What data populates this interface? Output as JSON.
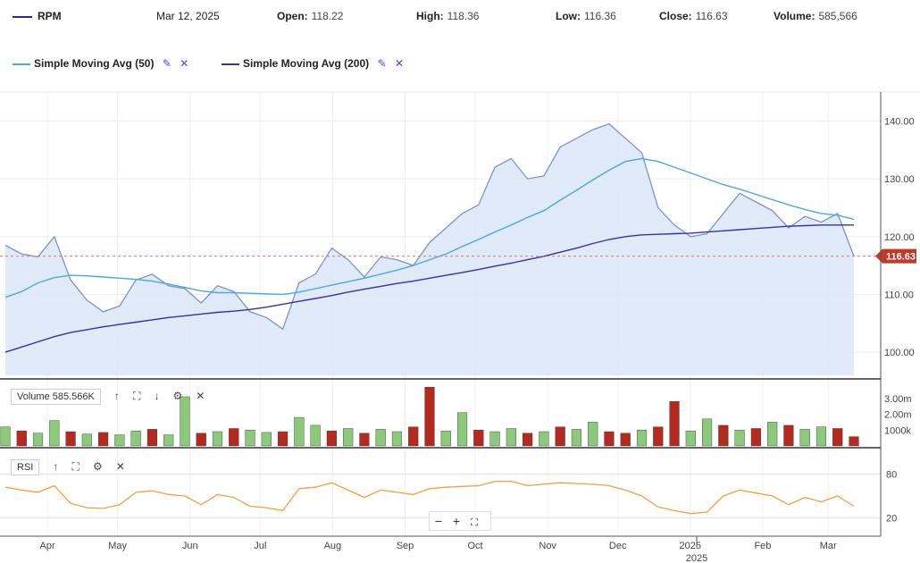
{
  "header": {
    "symbol": "RPM",
    "date": "Mar 12, 2025",
    "open_label": "Open:",
    "open": "118.22",
    "high_label": "High:",
    "high": "118.36",
    "low_label": "Low:",
    "low": "116.36",
    "close_label": "Close:",
    "close": "116.63",
    "volume_label": "Volume:",
    "volume": "585,566"
  },
  "legend": [
    {
      "label": "Simple Moving Avg (50)",
      "color": "#4aa8e0"
    },
    {
      "label": "Simple Moving Avg (200)",
      "color": "#3b2fa8"
    }
  ],
  "volume_pane": {
    "label": "Volume 585.566K"
  },
  "rsi_pane": {
    "label": "RSI"
  },
  "colors": {
    "price_line": "#7c93c9",
    "price_fill": "#dce6f7",
    "up_bar": "#8cc97a",
    "down_bar": "#b52a1f",
    "rsi": "#f2a040",
    "last_badge": "#c0392b"
  },
  "chart_data": {
    "type": "area",
    "x": [
      "2024-03-14",
      "2024-03-21",
      "2024-03-28",
      "2024-04-04",
      "2024-04-11",
      "2024-04-18",
      "2024-04-25",
      "2024-05-02",
      "2024-05-09",
      "2024-05-16",
      "2024-05-23",
      "2024-05-30",
      "2024-06-06",
      "2024-06-13",
      "2024-06-20",
      "2024-06-27",
      "2024-07-04",
      "2024-07-11",
      "2024-07-18",
      "2024-07-25",
      "2024-08-01",
      "2024-08-08",
      "2024-08-15",
      "2024-08-22",
      "2024-08-29",
      "2024-09-05",
      "2024-09-12",
      "2024-09-19",
      "2024-09-26",
      "2024-10-03",
      "2024-10-10",
      "2024-10-17",
      "2024-10-24",
      "2024-10-31",
      "2024-11-07",
      "2024-11-14",
      "2024-11-21",
      "2024-11-28",
      "2024-12-05",
      "2024-12-12",
      "2024-12-19",
      "2024-12-26",
      "2025-01-02",
      "2025-01-09",
      "2025-01-16",
      "2025-01-23",
      "2025-01-30",
      "2025-02-06",
      "2025-02-13",
      "2025-02-20",
      "2025-02-27",
      "2025-03-06",
      "2025-03-12"
    ],
    "series": [
      {
        "name": "RPM",
        "values": [
          118.5,
          117.0,
          116.5,
          120.0,
          112.5,
          109.0,
          107.0,
          108.0,
          112.5,
          113.5,
          111.5,
          111.0,
          108.5,
          111.5,
          110.5,
          107.0,
          106.0,
          104.0,
          112.0,
          113.5,
          118.0,
          116.0,
          113.0,
          116.5,
          116.0,
          115.0,
          119.0,
          121.5,
          124.0,
          125.5,
          132.0,
          133.5,
          130.0,
          130.5,
          135.5,
          137.0,
          138.5,
          139.5,
          137.0,
          134.5,
          125.0,
          122.0,
          120.0,
          120.5,
          124.0,
          127.5,
          126.0,
          124.5,
          121.5,
          123.5,
          122.5,
          124.0,
          116.63
        ]
      },
      {
        "name": "Simple Moving Avg (50)",
        "values": [
          109.5,
          110.5,
          112.0,
          112.9,
          113.3,
          113.2,
          113.0,
          112.8,
          112.6,
          112.3,
          111.8,
          111.2,
          110.6,
          110.3,
          110.3,
          110.2,
          110.1,
          110.0,
          110.4,
          111.0,
          111.6,
          112.2,
          112.8,
          113.5,
          114.2,
          115.0,
          116.0,
          117.0,
          118.3,
          119.5,
          120.8,
          122.0,
          123.3,
          124.5,
          126.3,
          128.0,
          129.8,
          131.5,
          133.0,
          133.5,
          133.0,
          132.0,
          131.0,
          130.0,
          129.0,
          128.2,
          127.3,
          126.4,
          125.5,
          124.7,
          124.0,
          123.7,
          123.0
        ]
      },
      {
        "name": "Simple Moving Avg (200)",
        "values": [
          100.0,
          100.9,
          101.8,
          102.7,
          103.4,
          103.9,
          104.4,
          104.8,
          105.2,
          105.6,
          106.0,
          106.3,
          106.6,
          106.9,
          107.1,
          107.4,
          107.8,
          108.3,
          108.8,
          109.3,
          109.8,
          110.4,
          110.9,
          111.4,
          111.9,
          112.3,
          112.8,
          113.3,
          113.8,
          114.3,
          114.9,
          115.4,
          116.0,
          116.6,
          117.3,
          118.0,
          118.8,
          119.5,
          120.0,
          120.3,
          120.4,
          120.5,
          120.6,
          120.8,
          121.0,
          121.2,
          121.4,
          121.6,
          121.8,
          121.9,
          122.0,
          122.0,
          122.0
        ]
      }
    ],
    "volume": [
      1200000,
      950000,
      800000,
      1600000,
      900000,
      750000,
      850000,
      700000,
      950000,
      1050000,
      700000,
      3100000,
      800000,
      900000,
      1100000,
      1000000,
      850000,
      900000,
      1800000,
      1300000,
      950000,
      1100000,
      800000,
      1050000,
      900000,
      1200000,
      3700000,
      950000,
      2100000,
      1000000,
      900000,
      1100000,
      800000,
      900000,
      1200000,
      1050000,
      1500000,
      900000,
      800000,
      1000000,
      1200000,
      2800000,
      950000,
      1700000,
      1300000,
      1000000,
      1100000,
      1500000,
      1300000,
      1050000,
      1200000,
      1100000,
      585566
    ],
    "volume_up": [
      true,
      false,
      true,
      true,
      false,
      true,
      false,
      true,
      true,
      false,
      true,
      true,
      false,
      true,
      false,
      true,
      true,
      false,
      true,
      true,
      false,
      true,
      false,
      true,
      true,
      false,
      false,
      true,
      true,
      false,
      true,
      true,
      false,
      true,
      false,
      true,
      true,
      false,
      false,
      true,
      false,
      false,
      true,
      true,
      false,
      true,
      false,
      true,
      false,
      true,
      true,
      false,
      false
    ],
    "rsi": [
      62,
      58,
      55,
      64,
      40,
      34,
      33,
      38,
      55,
      57,
      52,
      50,
      38,
      52,
      48,
      36,
      34,
      30,
      60,
      62,
      68,
      58,
      48,
      58,
      55,
      52,
      60,
      62,
      63,
      64,
      70,
      70,
      64,
      66,
      68,
      67,
      66,
      64,
      58,
      50,
      35,
      30,
      26,
      28,
      50,
      58,
      54,
      50,
      38,
      48,
      42,
      50,
      36
    ],
    "ylim": [
      96,
      143
    ],
    "yticks": [
      "100.00",
      "110.00",
      "120.00",
      "130.00",
      "140.00"
    ],
    "volume_ticks": [
      "1000k",
      "2.00m",
      "3.00m"
    ],
    "rsi_ticks": [
      "20",
      "80"
    ],
    "xtick_labels": [
      "Apr",
      "May",
      "Jun",
      "Jul",
      "Aug",
      "Sep",
      "Oct",
      "Nov",
      "Dec",
      "2025",
      "Feb",
      "Mar"
    ],
    "year_label": "2025",
    "last_value": "116.63",
    "legend_position": "top-left"
  }
}
